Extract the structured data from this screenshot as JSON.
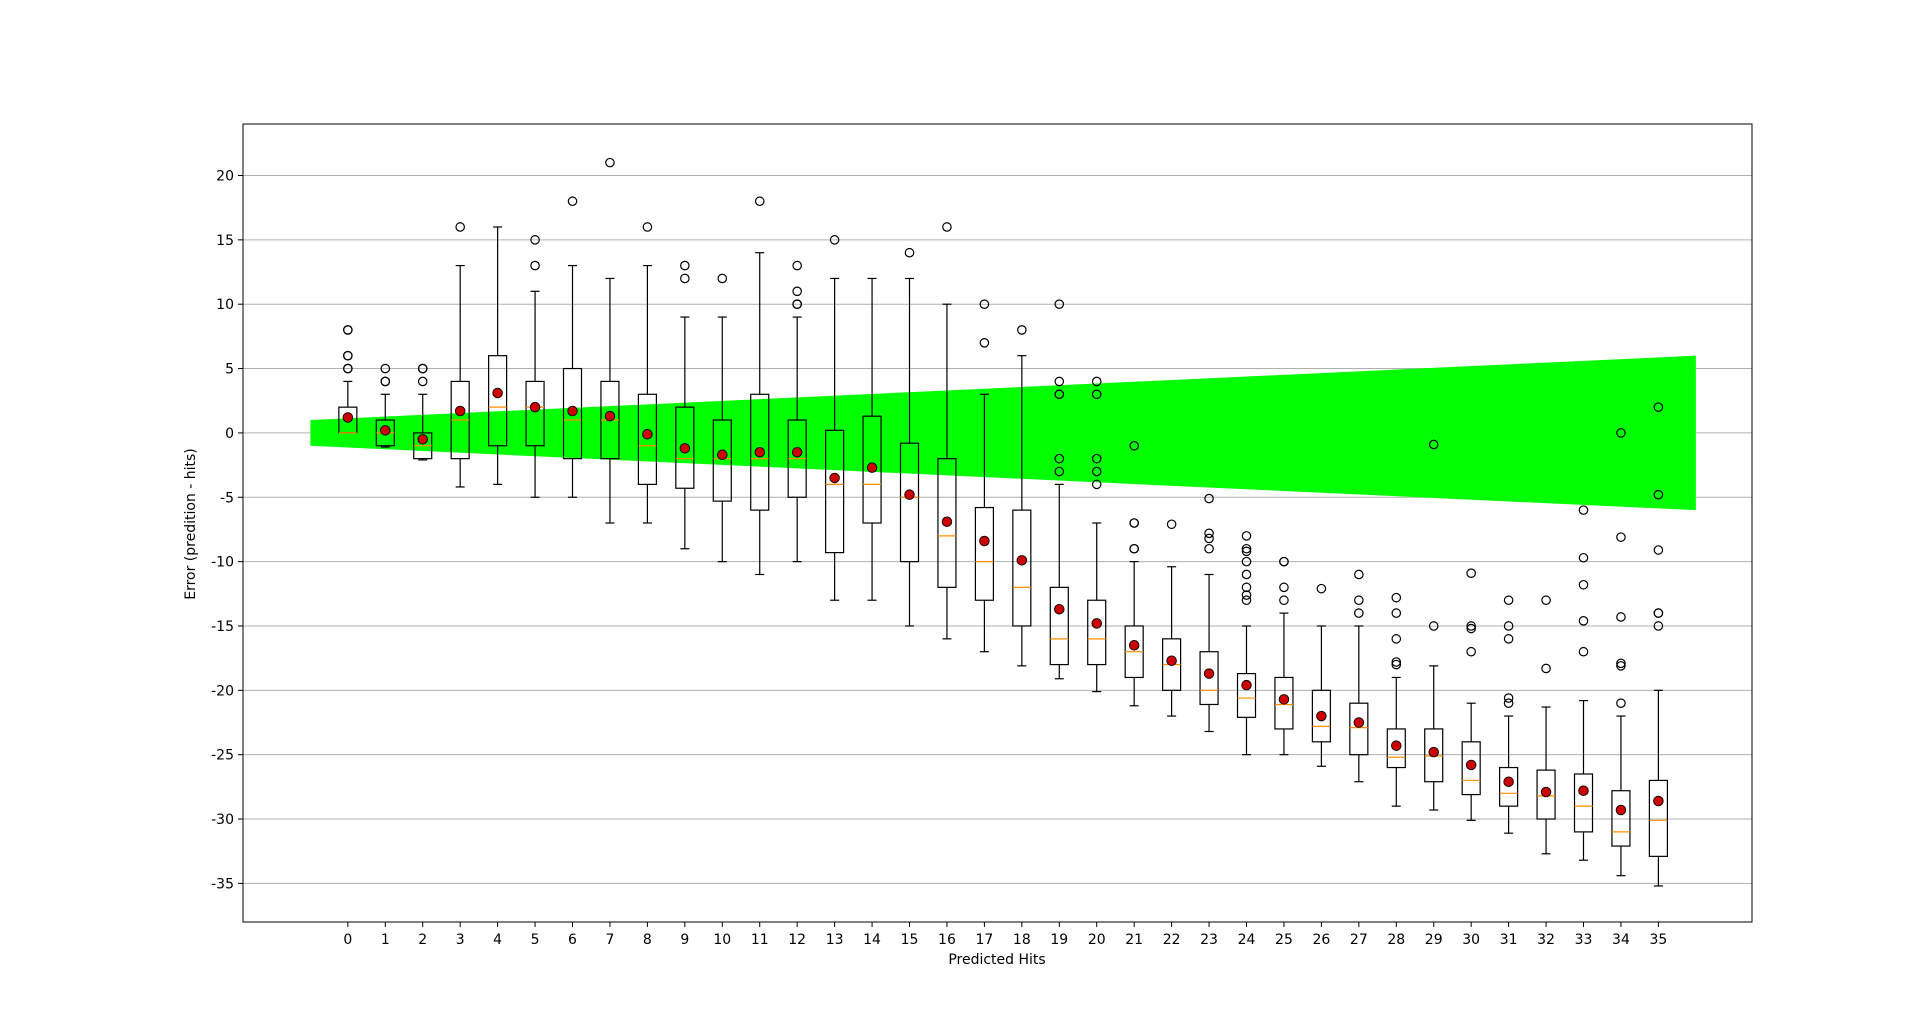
{
  "chart_data": {
    "type": "box",
    "xlabel": "Predicted Hits",
    "ylabel": "Error (predition - hits)",
    "ylim": [
      -38,
      24
    ],
    "xlim": [
      -2.8,
      37.5
    ],
    "yticks": [
      20,
      15,
      10,
      5,
      0,
      -5,
      -10,
      -15,
      -20,
      -25,
      -30,
      -35
    ],
    "grid": "horizontal",
    "colors": {
      "band": "#00ff00",
      "box": "#000000",
      "median": "#ff8c00",
      "mean": "#cc0000",
      "grid": "#b0b0b0"
    },
    "band": {
      "x": [
        -1,
        36
      ],
      "upper": [
        1,
        6
      ],
      "lower": [
        -1,
        -6
      ]
    },
    "categories": [
      0,
      1,
      2,
      3,
      4,
      5,
      6,
      7,
      8,
      9,
      10,
      11,
      12,
      13,
      14,
      15,
      16,
      17,
      18,
      19,
      20,
      21,
      22,
      23,
      24,
      25,
      26,
      27,
      28,
      29,
      30,
      31,
      32,
      33,
      34,
      35
    ],
    "boxes": [
      {
        "x": 0,
        "q1": 0,
        "median": 0,
        "q3": 2,
        "wlo": 0,
        "whi": 4,
        "mean": 1.2,
        "fliers": [
          5,
          5,
          6,
          6,
          8,
          8
        ]
      },
      {
        "x": 1,
        "q1": -1,
        "median": 0,
        "q3": 1,
        "wlo": -1.1,
        "whi": 3,
        "mean": 0.2,
        "fliers": [
          4,
          4,
          5
        ]
      },
      {
        "x": 2,
        "q1": -2,
        "median": -1,
        "q3": 0,
        "wlo": -2.1,
        "whi": 3,
        "mean": -0.5,
        "fliers": [
          4,
          5,
          5
        ]
      },
      {
        "x": 3,
        "q1": -2,
        "median": 1,
        "q3": 4,
        "wlo": -4.2,
        "whi": 13,
        "mean": 1.7,
        "fliers": [
          16
        ]
      },
      {
        "x": 4,
        "q1": -1,
        "median": 2,
        "q3": 6,
        "wlo": -4,
        "whi": 16,
        "mean": 3.1,
        "fliers": []
      },
      {
        "x": 5,
        "q1": -1,
        "median": 2,
        "q3": 4,
        "wlo": -5,
        "whi": 11,
        "mean": 2,
        "fliers": [
          13,
          15
        ]
      },
      {
        "x": 6,
        "q1": -2,
        "median": 1,
        "q3": 5,
        "wlo": -5,
        "whi": 13,
        "mean": 1.7,
        "fliers": [
          18
        ]
      },
      {
        "x": 7,
        "q1": -2,
        "median": 1,
        "q3": 4,
        "wlo": -7,
        "whi": 12,
        "mean": 1.3,
        "fliers": [
          21
        ]
      },
      {
        "x": 8,
        "q1": -4,
        "median": -1,
        "q3": 3,
        "wlo": -7,
        "whi": 13,
        "mean": -0.1,
        "fliers": [
          16
        ]
      },
      {
        "x": 9,
        "q1": -4.3,
        "median": -2,
        "q3": 2,
        "wlo": -9,
        "whi": 9,
        "mean": -1.2,
        "fliers": [
          12,
          13
        ]
      },
      {
        "x": 10,
        "q1": -5.3,
        "median": -2,
        "q3": 1,
        "wlo": -10,
        "whi": 9,
        "mean": -1.7,
        "fliers": [
          12
        ]
      },
      {
        "x": 11,
        "q1": -6,
        "median": -2,
        "q3": 3,
        "wlo": -11,
        "whi": 14,
        "mean": -1.5,
        "fliers": [
          18
        ]
      },
      {
        "x": 12,
        "q1": -5,
        "median": -2,
        "q3": 1,
        "wlo": -10,
        "whi": 9,
        "mean": -1.5,
        "fliers": [
          10,
          10,
          11,
          13
        ]
      },
      {
        "x": 13,
        "q1": -9.3,
        "median": -4,
        "q3": 0.2,
        "wlo": -13,
        "whi": 12,
        "mean": -3.5,
        "fliers": [
          15
        ]
      },
      {
        "x": 14,
        "q1": -7,
        "median": -4,
        "q3": 1.3,
        "wlo": -13,
        "whi": 12,
        "mean": -2.7,
        "fliers": []
      },
      {
        "x": 15,
        "q1": -10,
        "median": -5,
        "q3": -0.8,
        "wlo": -15,
        "whi": 12,
        "mean": -4.8,
        "fliers": [
          14
        ]
      },
      {
        "x": 16,
        "q1": -12,
        "median": -8,
        "q3": -2,
        "wlo": -16,
        "whi": 10,
        "mean": -6.9,
        "fliers": [
          16
        ]
      },
      {
        "x": 17,
        "q1": -13,
        "median": -10,
        "q3": -5.8,
        "wlo": -17,
        "whi": 3,
        "mean": -8.4,
        "fliers": [
          7,
          10
        ]
      },
      {
        "x": 18,
        "q1": -15,
        "median": -12,
        "q3": -6,
        "wlo": -18.1,
        "whi": 6,
        "mean": -9.9,
        "fliers": [
          8
        ]
      },
      {
        "x": 19,
        "q1": -18,
        "median": -16,
        "q3": -12,
        "wlo": -19.1,
        "whi": -4,
        "mean": -13.7,
        "fliers": [
          -3,
          -2,
          3,
          3,
          4,
          10
        ]
      },
      {
        "x": 20,
        "q1": -18,
        "median": -16,
        "q3": -13,
        "wlo": -20.1,
        "whi": -7,
        "mean": -14.8,
        "fliers": [
          -4,
          -3,
          -2,
          3,
          4
        ]
      },
      {
        "x": 21,
        "q1": -19,
        "median": -17,
        "q3": -15,
        "wlo": -21.2,
        "whi": -10,
        "mean": -16.5,
        "fliers": [
          -9,
          -9,
          -7,
          -7,
          -1
        ]
      },
      {
        "x": 22,
        "q1": -20,
        "median": -18,
        "q3": -16,
        "wlo": -22,
        "whi": -10.4,
        "mean": -17.7,
        "fliers": [
          -7.1
        ]
      },
      {
        "x": 23,
        "q1": -21.1,
        "median": -20,
        "q3": -17,
        "wlo": -23.2,
        "whi": -11,
        "mean": -18.7,
        "fliers": [
          -9,
          -8.2,
          -7.8,
          -5.1
        ]
      },
      {
        "x": 24,
        "q1": -22.1,
        "median": -20.6,
        "q3": -18.7,
        "wlo": -25,
        "whi": -15,
        "mean": -19.6,
        "fliers": [
          -13,
          -12.6,
          -12,
          -11,
          -10,
          -9.2,
          -9,
          -8
        ]
      },
      {
        "x": 25,
        "q1": -23,
        "median": -21.1,
        "q3": -19,
        "wlo": -25,
        "whi": -14,
        "mean": -20.7,
        "fliers": [
          -13,
          -12,
          -10,
          -10
        ]
      },
      {
        "x": 26,
        "q1": -24,
        "median": -22.8,
        "q3": -20,
        "wlo": -25.9,
        "whi": -15,
        "mean": -22,
        "fliers": [
          -12.1
        ]
      },
      {
        "x": 27,
        "q1": -25,
        "median": -22.9,
        "q3": -21,
        "wlo": -27.1,
        "whi": -15,
        "mean": -22.5,
        "fliers": [
          -14,
          -13,
          -11
        ]
      },
      {
        "x": 28,
        "q1": -26,
        "median": -25.2,
        "q3": -23,
        "wlo": -29,
        "whi": -19,
        "mean": -24.3,
        "fliers": [
          -18,
          -17.8,
          -16,
          -14,
          -12.8
        ]
      },
      {
        "x": 29,
        "q1": -27.1,
        "median": -25.1,
        "q3": -23,
        "wlo": -29.3,
        "whi": -18.1,
        "mean": -24.8,
        "fliers": [
          -15,
          -0.9
        ]
      },
      {
        "x": 30,
        "q1": -28.1,
        "median": -27,
        "q3": -24,
        "wlo": -30.1,
        "whi": -21,
        "mean": -25.8,
        "fliers": [
          -17,
          -15.2,
          -15,
          -10.9
        ]
      },
      {
        "x": 31,
        "q1": -29,
        "median": -28,
        "q3": -26,
        "wlo": -31.1,
        "whi": -22,
        "mean": -27.1,
        "fliers": [
          -21,
          -20.6,
          -16,
          -15,
          -13
        ]
      },
      {
        "x": 32,
        "q1": -30,
        "median": -28.2,
        "q3": -26.2,
        "wlo": -32.7,
        "whi": -21.3,
        "mean": -27.9,
        "fliers": [
          -18.3,
          -13
        ]
      },
      {
        "x": 33,
        "q1": -31,
        "median": -29,
        "q3": -26.5,
        "wlo": -33.2,
        "whi": -20.8,
        "mean": -27.8,
        "fliers": [
          -17,
          -14.6,
          -11.8,
          -9.7,
          -6
        ]
      },
      {
        "x": 34,
        "q1": -32.1,
        "median": -31,
        "q3": -27.8,
        "wlo": -34.4,
        "whi": -22,
        "mean": -29.3,
        "fliers": [
          -21,
          -18.1,
          -17.9,
          -14.3,
          -8.1,
          0
        ]
      },
      {
        "x": 35,
        "q1": -32.9,
        "median": -30.1,
        "q3": -27,
        "wlo": -35.2,
        "whi": -20,
        "mean": -28.6,
        "fliers": [
          -15,
          -14,
          -14,
          -9.1,
          -4.8,
          2
        ]
      }
    ]
  }
}
